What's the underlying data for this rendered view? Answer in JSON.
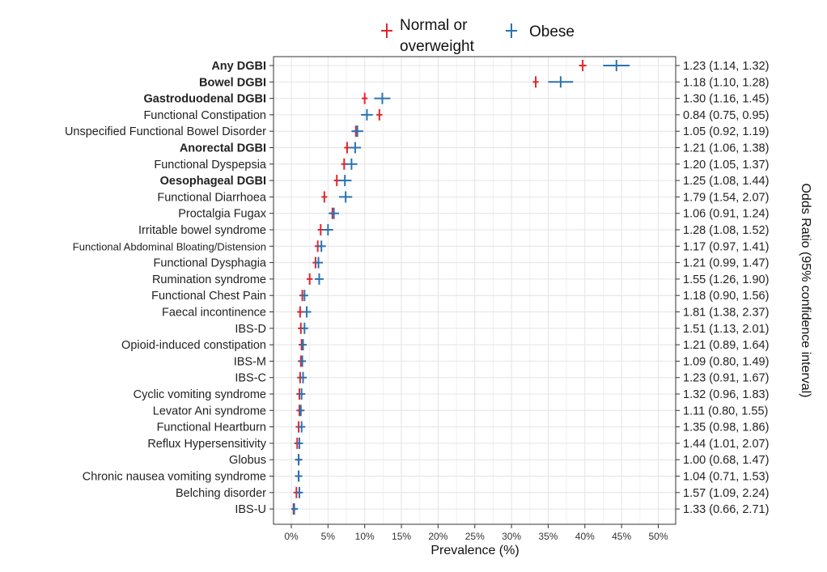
{
  "chart_data": {
    "type": "scatter",
    "xlabel": "Prevalence (%)",
    "y2label": "Odds Ratio (95% confidence interval)",
    "xlim": [
      0,
      50
    ],
    "xticks": [
      0,
      5,
      10,
      15,
      20,
      25,
      30,
      35,
      40,
      45,
      50
    ],
    "xtick_labels": [
      "0%",
      "5%",
      "10%",
      "15%",
      "20%",
      "25%",
      "30%",
      "35%",
      "40%",
      "45%",
      "50%"
    ],
    "grid": true,
    "legend_position": "top",
    "categories": [
      "Any DGBI",
      "Bowel DGBI",
      "Gastroduodenal DGBI",
      "Functional Constipation",
      "Unspecified Functional Bowel Disorder",
      "Anorectal DGBI",
      "Functional Dyspepsia",
      "Oesophageal DGBI",
      "Functional Diarrhoea",
      "Proctalgia Fugax",
      "Irritable bowel syndrome",
      "Functional Abdominal Bloating/Distension",
      "Functional Dysphagia",
      "Rumination syndrome",
      "Functional Chest Pain",
      "Faecal incontinence",
      "IBS-D",
      "Opioid-induced constipation",
      "IBS-M",
      "IBS-C",
      "Cyclic vomiting syndrome",
      "Levator Ani syndrome",
      "Functional Heartburn",
      "Reflux Hypersensitivity",
      "Globus",
      "Chronic nausea vomiting syndrome",
      "Belching disorder",
      "IBS-U"
    ],
    "bold_categories": [
      "Any DGBI",
      "Bowel DGBI",
      "Gastroduodenal DGBI",
      "Anorectal DGBI",
      "Oesophageal DGBI"
    ],
    "odds_ratios": [
      "1.23 (1.14, 1.32)",
      "1.18 (1.10, 1.28)",
      "1.30 (1.16, 1.45)",
      "0.84 (0.75, 0.95)",
      "1.05 (0.92, 1.19)",
      "1.21 (1.06, 1.38)",
      "1.20 (1.05, 1.37)",
      "1.25 (1.08, 1.44)",
      "1.79 (1.54, 2.07)",
      "1.06 (0.91, 1.24)",
      "1.28 (1.08, 1.52)",
      "1.17 (0.97, 1.41)",
      "1.21 (0.99, 1.47)",
      "1.55 (1.26, 1.90)",
      "1.18 (0.90, 1.56)",
      "1.81 (1.38, 2.37)",
      "1.51 (1.13, 2.01)",
      "1.21 (0.89, 1.64)",
      "1.09 (0.80, 1.49)",
      "1.23 (0.91, 1.67)",
      "1.32 (0.96, 1.83)",
      "1.11 (0.80, 1.55)",
      "1.35 (0.98, 1.86)",
      "1.44 (1.01, 2.07)",
      "1.00 (0.68, 1.47)",
      "1.04 (0.71, 1.53)",
      "1.57 (1.09, 2.24)",
      "1.33 (0.66, 2.71)"
    ],
    "series": [
      {
        "name": "Normal or overweight",
        "color": "#e3262b",
        "values": [
          39.7,
          33.3,
          10.0,
          12.0,
          8.8,
          7.6,
          7.2,
          6.2,
          4.5,
          5.6,
          4.0,
          3.6,
          3.3,
          2.5,
          1.5,
          1.2,
          1.3,
          1.4,
          1.3,
          1.2,
          1.1,
          1.1,
          1.0,
          0.8,
          1.0,
          1.0,
          0.7,
          0.3
        ],
        "ci_low": [
          39.2,
          32.9,
          9.6,
          11.6,
          8.4,
          7.2,
          6.8,
          5.8,
          4.1,
          5.2,
          3.6,
          3.2,
          2.9,
          2.1,
          1.1,
          0.8,
          0.9,
          1.0,
          0.9,
          0.8,
          0.7,
          0.7,
          0.6,
          0.4,
          0.6,
          0.6,
          0.3,
          0.0
        ],
        "ci_high": [
          40.2,
          33.7,
          10.4,
          12.4,
          9.2,
          8.0,
          7.6,
          6.6,
          4.9,
          6.0,
          4.4,
          4.0,
          3.7,
          2.9,
          1.9,
          1.6,
          1.7,
          1.8,
          1.7,
          1.6,
          1.5,
          1.5,
          1.4,
          1.2,
          1.4,
          1.4,
          1.1,
          0.7
        ]
      },
      {
        "name": "Obese",
        "color": "#2a73b3",
        "values": [
          44.3,
          36.7,
          12.4,
          10.3,
          9.0,
          8.7,
          8.2,
          7.3,
          7.4,
          5.8,
          5.0,
          4.1,
          3.7,
          3.8,
          1.8,
          2.1,
          1.8,
          1.6,
          1.5,
          1.6,
          1.4,
          1.3,
          1.4,
          1.1,
          1.0,
          1.0,
          1.1,
          0.4
        ],
        "ci_low": [
          42.5,
          35.0,
          11.3,
          9.5,
          8.2,
          7.9,
          7.4,
          6.4,
          6.5,
          5.1,
          4.3,
          3.5,
          3.1,
          3.2,
          1.3,
          1.5,
          1.3,
          1.1,
          1.0,
          1.1,
          0.9,
          0.8,
          0.9,
          0.6,
          0.5,
          0.5,
          0.6,
          0.0
        ],
        "ci_high": [
          46.1,
          38.4,
          13.5,
          11.1,
          9.8,
          9.5,
          9.0,
          8.2,
          8.3,
          6.5,
          5.7,
          4.7,
          4.3,
          4.4,
          2.3,
          2.7,
          2.3,
          2.1,
          2.0,
          2.1,
          1.9,
          1.8,
          1.9,
          1.6,
          1.5,
          1.5,
          1.6,
          0.9
        ]
      }
    ],
    "legend": [
      {
        "label_line1": "Normal or",
        "label_line2": "overweight",
        "color": "#e3262b"
      },
      {
        "label_line1": "Obese",
        "label_line2": "",
        "color": "#2a73b3"
      }
    ]
  }
}
